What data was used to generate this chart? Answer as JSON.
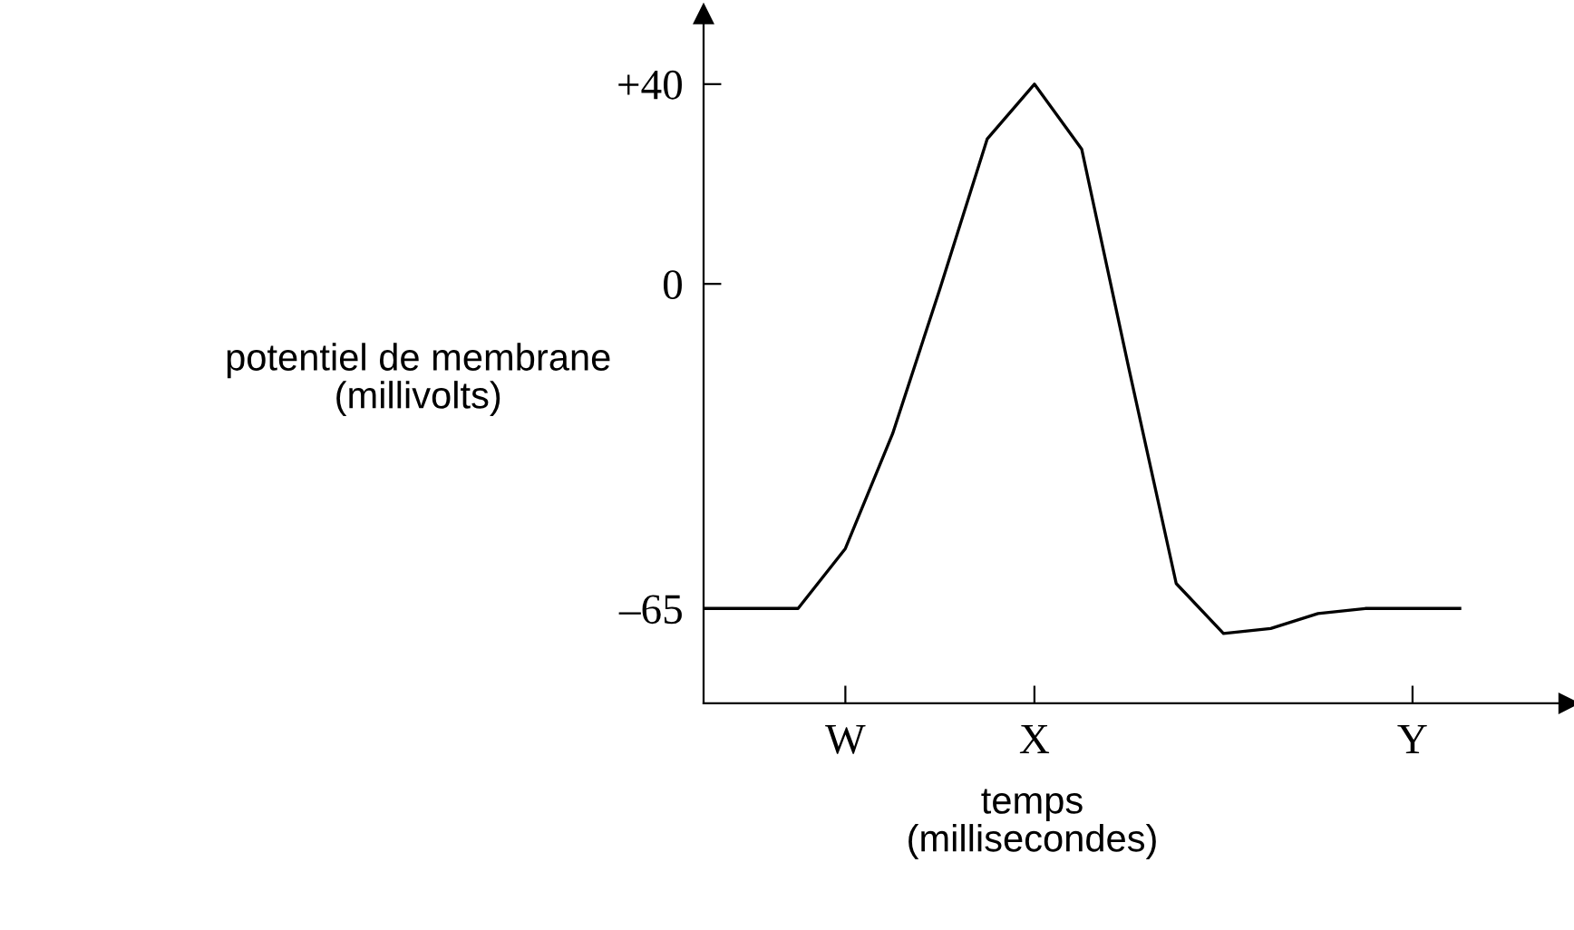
{
  "chart_data": {
    "type": "line",
    "xlabel": "temps\n(millisecondes)",
    "ylabel": "potentiel de membrane\n(millivolts)",
    "categories": [
      null,
      null,
      null,
      "W",
      null,
      null,
      null,
      "X",
      null,
      null,
      null,
      null,
      null,
      null,
      null,
      "Y",
      null
    ],
    "ylim": [
      -84,
      54
    ],
    "yticks": [
      {
        "value": 40,
        "label": "+40"
      },
      0,
      {
        "value": -65,
        "label": "–65"
      }
    ],
    "grid": false,
    "legend": false,
    "marker": "none",
    "line_style": "solid",
    "series": [
      {
        "color": "#000000",
        "values": [
          -65,
          -65,
          -65,
          -53,
          -30,
          -1,
          29,
          40,
          27,
          -17,
          -60,
          -70,
          -69,
          -66,
          -65,
          -65,
          -65
        ]
      }
    ]
  }
}
